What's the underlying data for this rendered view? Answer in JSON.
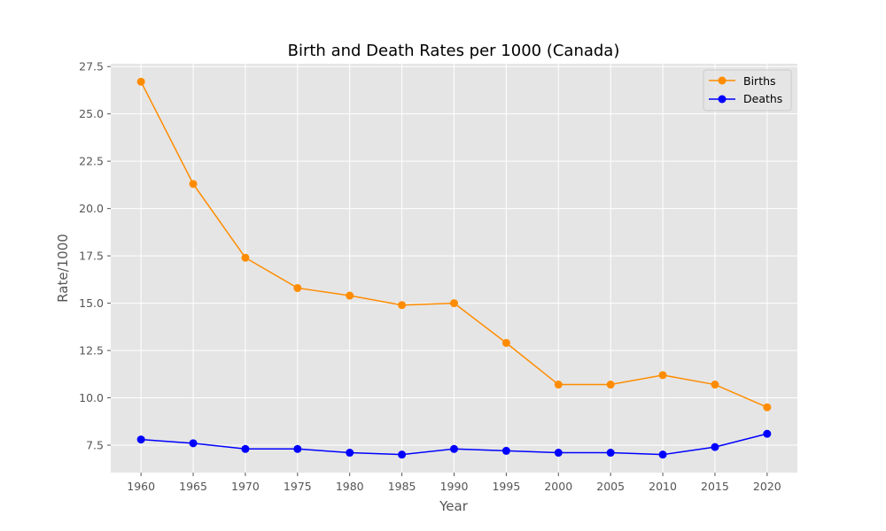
{
  "chart_data": {
    "type": "line",
    "title": "Birth and Death Rates per 1000 (Canada)",
    "xlabel": "Year",
    "ylabel": "Rate/1000",
    "x": [
      1960,
      1965,
      1970,
      1975,
      1980,
      1985,
      1990,
      1995,
      2000,
      2005,
      2010,
      2015,
      2020
    ],
    "x_tick_labels": [
      "1960",
      "1965",
      "1970",
      "1975",
      "1980",
      "1985",
      "1990",
      "1995",
      "2000",
      "2005",
      "2010",
      "2015",
      "2020"
    ],
    "xlim": [
      1957.1,
      2022.9
    ],
    "ylim": [
      6.05,
      27.65
    ],
    "y_ticks": [
      7.5,
      10.0,
      12.5,
      15.0,
      17.5,
      20.0,
      22.5,
      25.0,
      27.5
    ],
    "y_tick_labels": [
      "7.5",
      "10.0",
      "12.5",
      "15.0",
      "17.5",
      "20.0",
      "22.5",
      "25.0",
      "27.5"
    ],
    "grid": true,
    "legend_position": "top-right",
    "series": [
      {
        "name": "Births",
        "color": "#ff8c00",
        "marker": "circle",
        "values": [
          26.7,
          21.3,
          17.4,
          15.8,
          15.4,
          14.9,
          15.0,
          12.9,
          10.7,
          10.7,
          11.2,
          10.7,
          9.5
        ]
      },
      {
        "name": "Deaths",
        "color": "#0000ff",
        "marker": "circle",
        "values": [
          7.8,
          7.6,
          7.3,
          7.3,
          7.1,
          7.0,
          7.3,
          7.2,
          7.1,
          7.1,
          7.0,
          7.4,
          8.1
        ]
      }
    ],
    "plot_background": "#e5e5e5",
    "grid_color": "#ffffff"
  }
}
